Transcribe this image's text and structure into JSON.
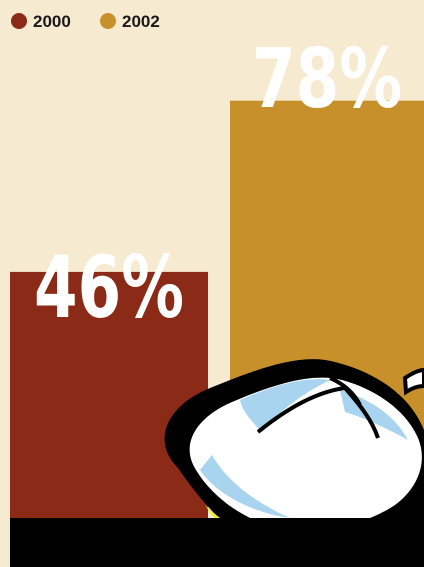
{
  "chart_data": {
    "type": "bar",
    "categories": [
      "2000",
      "2002"
    ],
    "values": [
      46,
      78
    ],
    "value_labels": [
      "46%",
      "78%"
    ],
    "unit": "%",
    "ylim": [
      0,
      100
    ],
    "grid": false,
    "legend_position": "top-left",
    "legend": [
      {
        "label": "2000",
        "color": "#8b2a16"
      },
      {
        "label": "2002",
        "color": "#c8902a"
      }
    ]
  },
  "colors": {
    "background": "#f6ebd1",
    "bar_2000": "#8b2a16",
    "bar_2002": "#c8902a",
    "baseline": "#000000",
    "mouse_body": "#ffffff",
    "mouse_shade": "#a8d4f0",
    "mouse_base": "#f2ea2a"
  },
  "decoration": {
    "icon": "computer-mouse-icon"
  }
}
